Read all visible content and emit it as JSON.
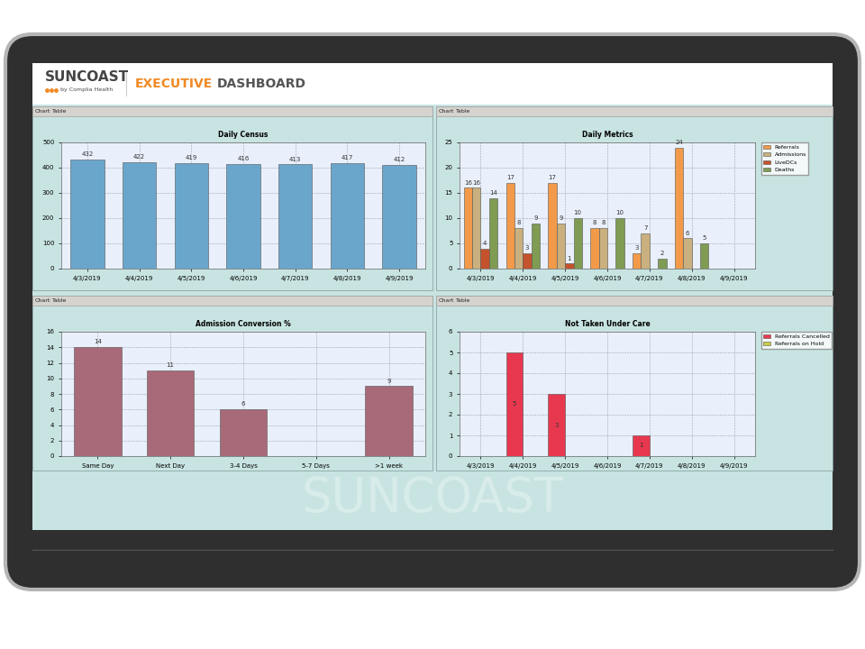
{
  "header": {
    "brand": "SUNCOAST",
    "byline": "by Complia Health",
    "title": [
      "EXECUTIVE",
      "DASHBOARD"
    ],
    "tabs": [
      "Chart",
      "Table"
    ],
    "watermark": "SUNCOAST"
  },
  "chart_data": [
    {
      "type": "bar",
      "title": "Daily Census",
      "categories": [
        "4/3/2019",
        "4/4/2019",
        "4/5/2019",
        "4/6/2019",
        "4/7/2019",
        "4/8/2019",
        "4/9/2019"
      ],
      "values": [
        432,
        422,
        419,
        416,
        413,
        417,
        412
      ],
      "color": "#6aa6cc",
      "ylim": [
        0,
        500
      ],
      "yticks": [
        0,
        100,
        200,
        300,
        400,
        500
      ],
      "grid": true,
      "data_labels": true
    },
    {
      "type": "bar",
      "title": "Daily Metrics",
      "categories": [
        "4/3/2019",
        "4/4/2019",
        "4/5/2019",
        "4/6/2019",
        "4/7/2019",
        "4/8/2019",
        "4/9/2019"
      ],
      "series": [
        {
          "name": "Referrals",
          "color": "#f29a4a",
          "values": [
            16,
            17,
            17,
            8,
            3,
            24,
            null
          ]
        },
        {
          "name": "Admissions",
          "color": "#c9b07e",
          "values": [
            16,
            8,
            9,
            8,
            7,
            6,
            null
          ]
        },
        {
          "name": "LiveDCs",
          "color": "#c4522c",
          "values": [
            4,
            3,
            1,
            null,
            null,
            null,
            null
          ]
        },
        {
          "name": "Deaths",
          "color": "#7f9c52",
          "values": [
            14,
            9,
            10,
            10,
            2,
            5,
            null
          ]
        }
      ],
      "ylim": [
        0,
        25
      ],
      "yticks": [
        0,
        5,
        10,
        15,
        20,
        25
      ],
      "grid": true,
      "legend": "upper left",
      "data_labels": true
    },
    {
      "type": "bar",
      "title": "Admission Conversion %",
      "categories": [
        "Same Day",
        "Next Day",
        "3-4 Days",
        "5-7 Days",
        ">1 week"
      ],
      "values": [
        14,
        11,
        6,
        null,
        9
      ],
      "color": "#a86a78",
      "ylim": [
        0,
        16
      ],
      "yticks": [
        0,
        2,
        4,
        6,
        8,
        10,
        12,
        14,
        16
      ],
      "grid": true,
      "data_labels": true
    },
    {
      "type": "bar",
      "title": "Not Taken Under Care",
      "categories": [
        "4/3/2019",
        "4/4/2019",
        "4/5/2019",
        "4/6/2019",
        "4/7/2019",
        "4/8/2019",
        "4/9/2019"
      ],
      "series": [
        {
          "name": "Referrals Cancelled",
          "color": "#e8384f",
          "values": [
            null,
            5,
            3,
            null,
            1,
            null,
            null
          ]
        },
        {
          "name": "Referrals on Hold",
          "color": "#c8cc4a",
          "values": [
            null,
            null,
            null,
            null,
            null,
            null,
            null
          ]
        }
      ],
      "ylim": [
        0,
        6
      ],
      "yticks": [
        0,
        1,
        2,
        3,
        4,
        5,
        6
      ],
      "grid": true,
      "legend": "upper left",
      "data_labels": true
    }
  ]
}
